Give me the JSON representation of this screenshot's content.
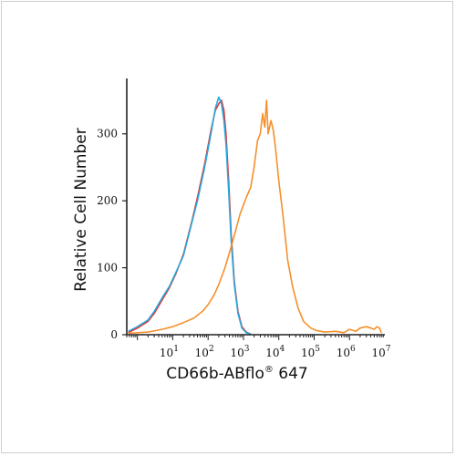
{
  "chart_data": {
    "type": "line",
    "xlabel": "CD66b-ABflo",
    "xlabel_superscript": "®",
    "xlabel_suffix": " 647",
    "ylabel": "Relative Cell Number",
    "x_scale": "log",
    "xlim": [
      0.5,
      10000000
    ],
    "ylim": [
      0,
      380
    ],
    "y_ticks": [
      0,
      100,
      200,
      300
    ],
    "x_ticks": [
      {
        "base": "10",
        "exp": "1",
        "value": 10
      },
      {
        "base": "10",
        "exp": "2",
        "value": 100
      },
      {
        "base": "10",
        "exp": "3",
        "value": 1000
      },
      {
        "base": "10",
        "exp": "4",
        "value": 10000
      },
      {
        "base": "10",
        "exp": "5",
        "value": 100000
      },
      {
        "base": "10",
        "exp": "6",
        "value": 1000000
      },
      {
        "base": "10",
        "exp": "7",
        "value": 10000000
      }
    ],
    "grid": false,
    "series": [
      {
        "color": "#e8312a",
        "x": [
          0.55,
          1,
          2,
          3,
          5,
          8,
          12,
          20,
          35,
          50,
          80,
          120,
          160,
          200,
          240,
          280,
          320,
          380,
          450,
          550,
          700,
          900,
          1200,
          1600
        ],
        "y": [
          3,
          10,
          20,
          32,
          52,
          70,
          90,
          120,
          170,
          205,
          255,
          305,
          335,
          345,
          350,
          335,
          300,
          230,
          150,
          80,
          35,
          12,
          4,
          1
        ]
      },
      {
        "color": "#29a8df",
        "x": [
          0.55,
          1,
          2,
          3,
          5,
          8,
          12,
          20,
          35,
          50,
          80,
          120,
          160,
          200,
          240,
          280,
          320,
          380,
          450,
          550,
          700,
          900,
          1200,
          1600
        ],
        "y": [
          5,
          12,
          22,
          35,
          55,
          72,
          92,
          118,
          168,
          200,
          250,
          300,
          338,
          355,
          345,
          320,
          285,
          215,
          140,
          75,
          32,
          10,
          3,
          1
        ]
      },
      {
        "color": "#f5902c",
        "x": [
          0.55,
          2,
          5,
          10,
          20,
          40,
          70,
          100,
          150,
          200,
          300,
          500,
          800,
          1200,
          1600,
          2000,
          2500,
          3000,
          3500,
          4000,
          4500,
          5000,
          6000,
          7000,
          8000,
          10000,
          13000,
          18000,
          25000,
          35000,
          50000,
          80000,
          120000,
          200000,
          400000,
          700000,
          1000000,
          1500000,
          2000000,
          3000000,
          4000000,
          5000000,
          6000000,
          7000000,
          8000000
        ],
        "y": [
          2,
          4,
          8,
          12,
          18,
          25,
          35,
          45,
          60,
          75,
          100,
          140,
          180,
          205,
          220,
          250,
          290,
          300,
          330,
          310,
          350,
          300,
          320,
          305,
          280,
          230,
          180,
          110,
          70,
          40,
          20,
          10,
          6,
          4,
          5,
          3,
          8,
          5,
          10,
          12,
          10,
          8,
          12,
          10,
          3
        ]
      }
    ]
  }
}
